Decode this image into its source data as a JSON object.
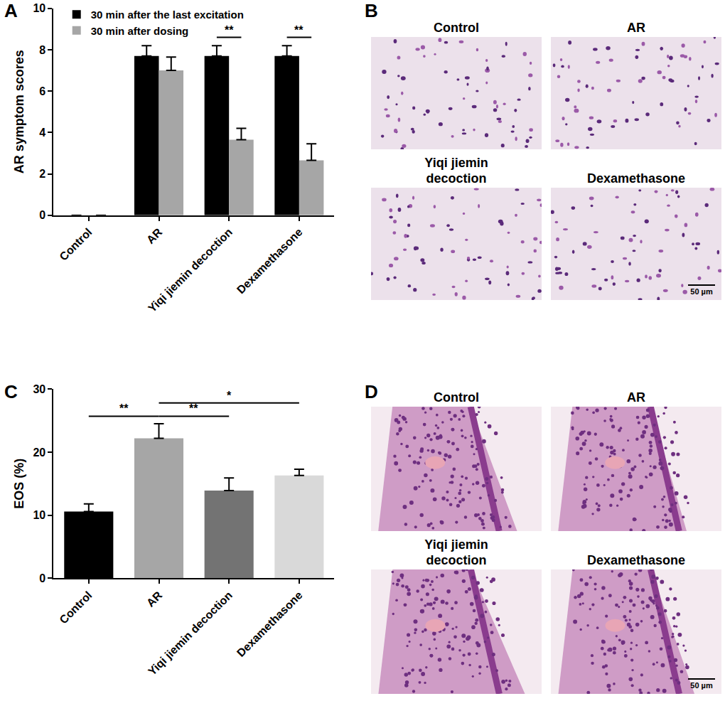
{
  "chart_data": [
    {
      "panel": "A",
      "type": "bar",
      "y_label": "AR symptom scores",
      "categories": [
        "Control",
        "AR",
        "Yiqi jiemin decoction",
        "Dexamethasone"
      ],
      "series": [
        {
          "name": "30 min after the last excitation",
          "color": "#000000",
          "values": [
            0,
            7.7,
            7.7,
            7.7
          ],
          "errors": [
            0,
            0.5,
            0.5,
            0.5
          ]
        },
        {
          "name": "30 min after dosing",
          "color": "#a6a6a6",
          "values": [
            0,
            7.0,
            3.65,
            2.65
          ],
          "errors": [
            0,
            0.65,
            0.55,
            0.8
          ]
        }
      ],
      "ylim": [
        0,
        10
      ],
      "yticks": [
        0,
        2,
        4,
        6,
        8,
        10
      ],
      "grid": false,
      "legend": "top left",
      "significance": [
        {
          "category": "Yiqi jiemin decoction",
          "label": "**"
        },
        {
          "category": "Dexamethasone",
          "label": "**"
        }
      ]
    },
    {
      "panel": "C",
      "type": "bar",
      "y_label": "EOS (%)",
      "categories": [
        "Control",
        "AR",
        "Yiqi jiemin decoction",
        "Dexamethasone"
      ],
      "values": [
        10.6,
        22.2,
        13.9,
        16.3
      ],
      "errors": [
        1.2,
        2.3,
        2.0,
        1.0
      ],
      "colors": [
        "#000000",
        "#a6a6a6",
        "#737373",
        "#d9d9d9"
      ],
      "ylim": [
        0,
        30
      ],
      "yticks": [
        0,
        10,
        20,
        30
      ],
      "grid": false,
      "significance": [
        {
          "from": "Control",
          "to": "AR",
          "label": "**"
        },
        {
          "from": "AR",
          "to": "Yiqi jiemin decoction",
          "label": "**"
        },
        {
          "from": "AR",
          "to": "Dexamethasone",
          "label": "*"
        }
      ]
    }
  ],
  "image_panels": [
    {
      "panel": "B",
      "images": [
        "Control",
        "AR",
        "Yiqi jiemin decoction",
        "Dexamethasone"
      ],
      "scale_bar": "50 µm"
    },
    {
      "panel": "D",
      "images": [
        "Control",
        "AR",
        "Yiqi jiemin decoction",
        "Dexamethasone"
      ],
      "scale_bar": "50 µm"
    }
  ]
}
